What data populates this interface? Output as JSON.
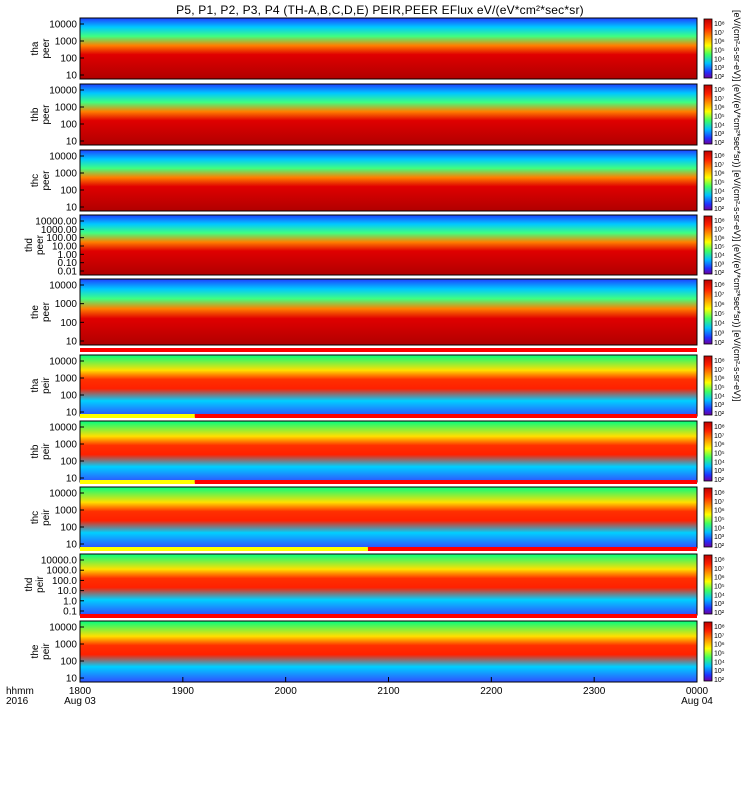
{
  "title": "P5, P1, P2, P3, P4 (TH-A,B,C,D,E) PEIR,PEER EFlux eV/(eV*cm²*sec*sr)",
  "colorbar_caption": "[eV/(cm²-s-sr-eV)] (eV/(eV*cm²*sec*sr)) [eV/(cm²-s-sr-eV)] (eV/(eV*cm²*sec*sr)) [eV/(cm²-s-sr-eV)]",
  "colorbar_ticks": [
    "10⁸",
    "10⁷",
    "10⁶",
    "10⁵",
    "10⁴",
    "10³",
    "10²"
  ],
  "colors": {
    "background": "#8b0000",
    "accent": "#ff0000",
    "flag_red": "#ff0000",
    "flag_yellow": "#ffff00"
  },
  "xaxis": {
    "label_line1": "hhmm",
    "label_line2": "2016",
    "ticks": [
      {
        "t": 0,
        "label": "1800",
        "sub": "Aug 03"
      },
      {
        "t": 60,
        "label": "1900",
        "sub": ""
      },
      {
        "t": 120,
        "label": "2000",
        "sub": ""
      },
      {
        "t": 180,
        "label": "2100",
        "sub": ""
      },
      {
        "t": 240,
        "label": "2200",
        "sub": ""
      },
      {
        "t": 300,
        "label": "2300",
        "sub": ""
      },
      {
        "t": 360,
        "label": "0000",
        "sub": "Aug 04"
      }
    ]
  },
  "chart_data": {
    "type": "heatmap",
    "description_units": "energy (eV) vs time (minutes after 1800 UT, 2016-08-03)",
    "time_range": [
      0,
      360
    ],
    "panels": [
      {
        "id": "tha_peer",
        "label1": "tha",
        "label2": "peer",
        "yticks": [
          "10000",
          "1000",
          "100",
          "10"
        ],
        "yrange": [
          5,
          20000
        ],
        "log": true
      },
      {
        "id": "thb_peer",
        "label1": "thb",
        "label2": "peer",
        "yticks": [
          "10000",
          "1000",
          "100",
          "10"
        ],
        "yrange": [
          5,
          20000
        ],
        "log": true
      },
      {
        "id": "thc_peer",
        "label1": "thc",
        "label2": "peer",
        "yticks": [
          "10000",
          "1000",
          "100",
          "10"
        ],
        "yrange": [
          5,
          20000
        ],
        "log": true
      },
      {
        "id": "thd_peer",
        "label1": "thd",
        "label2": "peer",
        "yticks": [
          "10000.00",
          "1000.00",
          "100.00",
          "10.00",
          "1.00",
          "0.10",
          "0.01"
        ],
        "yrange": [
          0.01,
          20000
        ],
        "log": true
      },
      {
        "id": "the_peer",
        "label1": "the",
        "label2": "peer",
        "yticks": [
          "10000",
          "1000",
          "100",
          "10"
        ],
        "yrange": [
          5,
          20000
        ],
        "log": true
      },
      {
        "id": "thd_peir",
        "label1": "tha",
        "label2": "peir",
        "yticks": [
          "10000",
          "1000",
          "100",
          "10"
        ],
        "yrange": [
          5,
          20000
        ],
        "log": true
      },
      {
        "id": "thb_peir",
        "label1": "thb",
        "label2": "peir",
        "yticks": [
          "10000",
          "1000",
          "100",
          "10"
        ],
        "yrange": [
          5,
          20000
        ],
        "log": true
      },
      {
        "id": "thc_peir",
        "label1": "thc",
        "label2": "peir",
        "yticks": [
          "10000",
          "1000",
          "100",
          "10"
        ],
        "yrange": [
          5,
          20000
        ],
        "log": true
      },
      {
        "id": "thd_peir2",
        "label1": "thd",
        "label2": "peir",
        "yticks": [
          "10000.0",
          "1000.0",
          "100.0",
          "10.0",
          "1.0",
          "0.1"
        ],
        "yrange": [
          0.05,
          20000
        ],
        "log": true
      },
      {
        "id": "the_peir",
        "label1": "the",
        "label2": "peir",
        "yticks": [
          "10000",
          "1000",
          "100",
          "10"
        ],
        "yrange": [
          5,
          20000
        ],
        "log": true
      }
    ],
    "mode_flags": [
      {
        "after_panel": 5,
        "segments": [
          {
            "t0": 0,
            "t1": 360,
            "color": "#ff0000"
          }
        ]
      },
      {
        "after_panel": 6,
        "segments": [
          {
            "t0": 0,
            "t1": 67,
            "color": "#ffff00"
          },
          {
            "t0": 67,
            "t1": 360,
            "color": "#ff0000"
          }
        ]
      },
      {
        "after_panel": 7,
        "segments": [
          {
            "t0": 0,
            "t1": 67,
            "color": "#ffff00"
          },
          {
            "t0": 67,
            "t1": 360,
            "color": "#ff0000"
          }
        ]
      },
      {
        "after_panel": 8,
        "segments": [
          {
            "t0": 0,
            "t1": 168,
            "color": "#ffff00"
          },
          {
            "t0": 168,
            "t1": 360,
            "color": "#ff0000"
          }
        ]
      },
      {
        "after_panel": 9,
        "segments": [
          {
            "t0": 0,
            "t1": 360,
            "color": "#ff0000"
          }
        ]
      }
    ]
  }
}
